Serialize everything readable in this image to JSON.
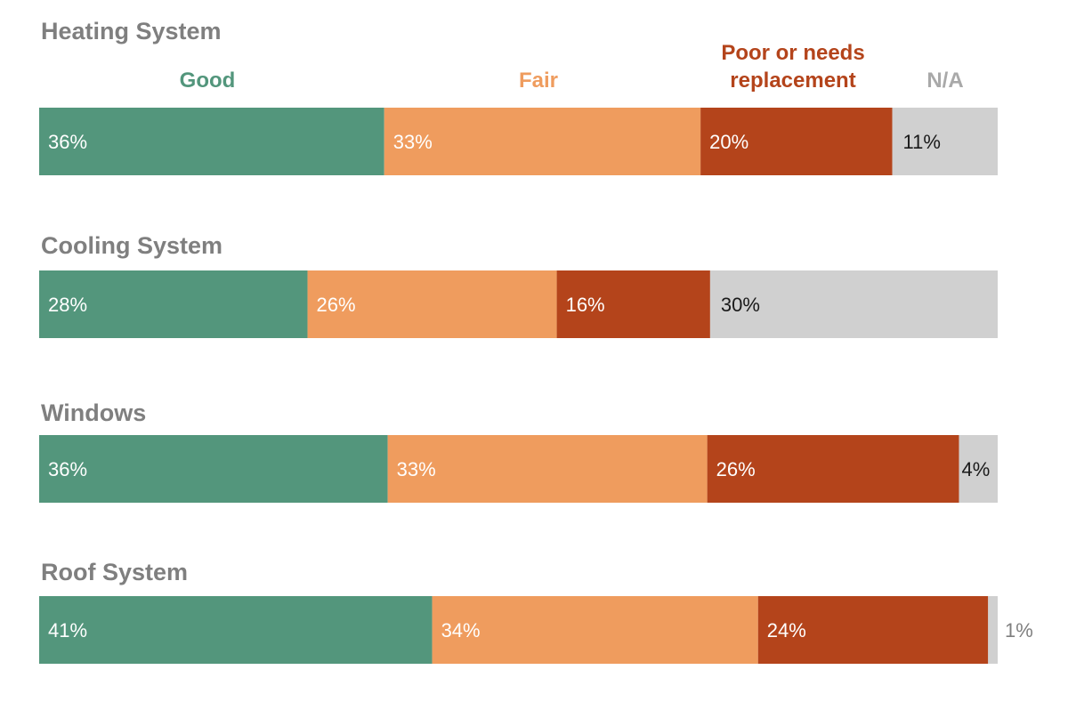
{
  "chart_data": {
    "type": "bar",
    "orientation": "horizontal",
    "stacked": true,
    "normalized_percent": true,
    "legend": [
      {
        "key": "good",
        "label": "Good",
        "color": "#53967c"
      },
      {
        "key": "fair",
        "label": "Fair",
        "color": "#ef9c5e"
      },
      {
        "key": "poor",
        "label": "Poor or needs replacement",
        "lines": [
          "Poor or needs",
          "replacement"
        ],
        "color": "#b4441b"
      },
      {
        "key": "na",
        "label": "N/A",
        "color": "#a9a9a9",
        "fill": "#d0d0d0"
      }
    ],
    "categories": [
      "Heating System",
      "Cooling System",
      "Windows",
      "Roof System"
    ],
    "series": [
      {
        "name": "Good",
        "values": [
          36,
          28,
          36,
          41
        ]
      },
      {
        "name": "Fair",
        "values": [
          33,
          26,
          33,
          34
        ]
      },
      {
        "name": "Poor or needs replacement",
        "values": [
          20,
          16,
          26,
          24
        ]
      },
      {
        "name": "N/A",
        "values": [
          11,
          30,
          4,
          1
        ]
      }
    ],
    "value_labels": [
      [
        "36%",
        "33%",
        "20%",
        "11%"
      ],
      [
        "28%",
        "26%",
        "16%",
        "30%"
      ],
      [
        "36%",
        "33%",
        "26%",
        "4%"
      ],
      [
        "41%",
        "34%",
        "24%",
        "1%"
      ]
    ]
  }
}
